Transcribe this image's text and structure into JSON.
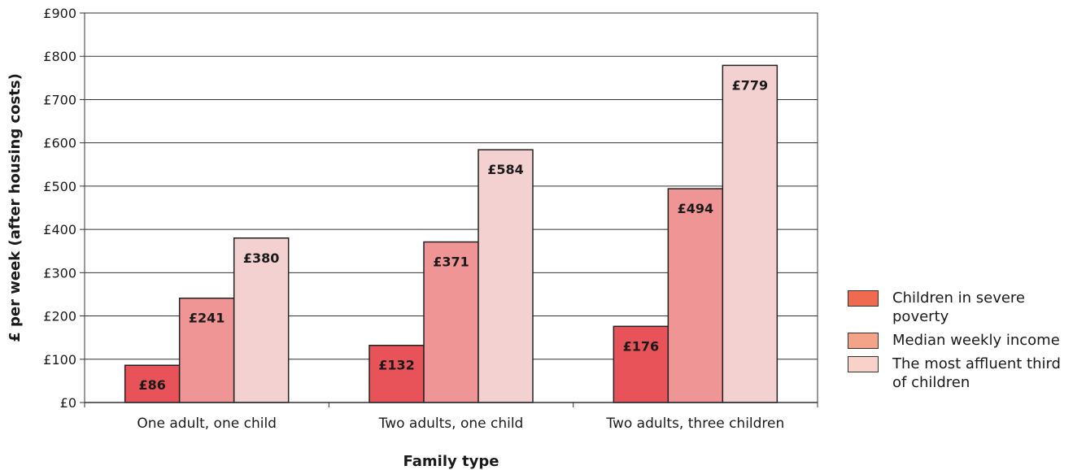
{
  "chart_data": {
    "type": "bar",
    "categories": [
      "One adult, one child",
      "Two adults, one child",
      "Two adults, three children"
    ],
    "series": [
      {
        "name": "Children in severe poverty",
        "values": [
          86,
          132,
          176
        ],
        "labels": [
          "£86",
          "£132",
          "£176"
        ],
        "color": "#e8535a",
        "legend_color": "#ef6a4e"
      },
      {
        "name": "Median weekly income",
        "values": [
          241,
          371,
          494
        ],
        "labels": [
          "£241",
          "£371",
          "£494"
        ],
        "color": "#ef9595",
        "legend_color": "#f3a488"
      },
      {
        "name": "The most affluent third of children",
        "values": [
          380,
          584,
          779
        ],
        "labels": [
          "£380",
          "£584",
          "£779"
        ],
        "color": "#f3d1d1",
        "legend_color": "#f8d2c8"
      }
    ],
    "xlabel": "Family type",
    "ylabel": "£ per week (after housing costs)",
    "ylim": [
      0,
      900
    ],
    "yticks": [
      0,
      100,
      200,
      300,
      400,
      500,
      600,
      700,
      800,
      900
    ],
    "ytick_labels": [
      "£0",
      "£100",
      "£200",
      "£300",
      "£400",
      "£500",
      "£600",
      "£700",
      "£800",
      "£900"
    ],
    "grid": true,
    "legend_position": "right"
  }
}
